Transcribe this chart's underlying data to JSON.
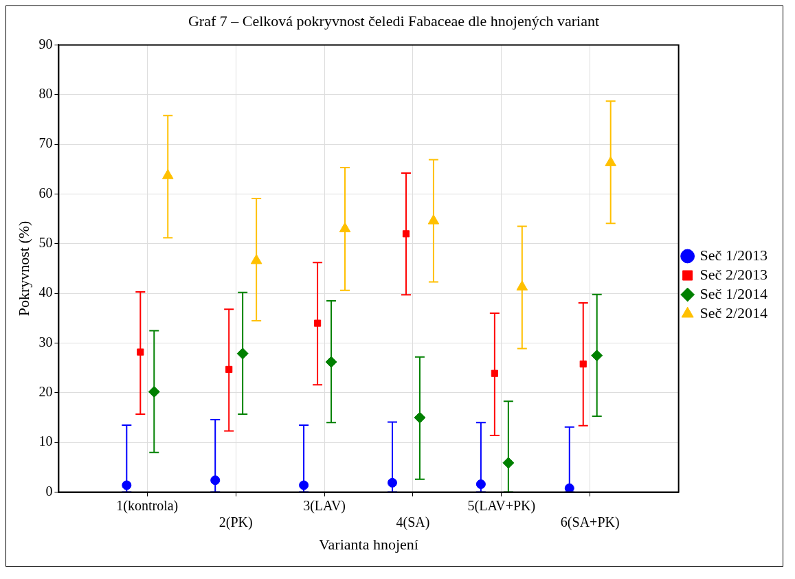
{
  "chart_data": {
    "type": "scatter",
    "title": "Graf 7 – Celková pokryvnost čeledi Fabaceae dle hnojených variant",
    "xlabel": "Varianta hnojení",
    "ylabel": "Pokryvnost (%)",
    "categories": [
      "1(kontrola)",
      "2(PK)",
      "3(LAV)",
      "4(SA)",
      "5(LAV+PK)",
      "6(SA+PK)"
    ],
    "ylim": [
      0,
      90
    ],
    "yticks": [
      0,
      10,
      20,
      30,
      40,
      50,
      60,
      70,
      80,
      90
    ],
    "grid": true,
    "legend": "right",
    "series": [
      {
        "name": "Seč 1/2013",
        "color": "#0000ff",
        "marker": "circle",
        "values": [
          1.4,
          2.4,
          1.4,
          1.9,
          1.6,
          0.8
        ],
        "errors": [
          [
            0,
            13.5
          ],
          [
            0,
            14.6
          ],
          [
            0,
            13.5
          ],
          [
            0,
            14.1
          ],
          [
            0,
            14.0
          ],
          [
            0,
            13.1
          ]
        ]
      },
      {
        "name": "Seč 2/2013",
        "color": "#ff0000",
        "marker": "square",
        "values": [
          28.2,
          24.7,
          34.0,
          52.0,
          23.9,
          25.8
        ],
        "errors": [
          [
            15.7,
            40.3
          ],
          [
            12.3,
            36.8
          ],
          [
            21.6,
            46.2
          ],
          [
            39.7,
            64.2
          ],
          [
            11.4,
            36.0
          ],
          [
            13.4,
            38.1
          ]
        ]
      },
      {
        "name": "Seč 1/2014",
        "color": "#008000",
        "marker": "diamond",
        "values": [
          20.2,
          27.9,
          26.2,
          15.0,
          5.9,
          27.5
        ],
        "errors": [
          [
            8.0,
            32.5
          ],
          [
            15.7,
            40.2
          ],
          [
            14.0,
            38.5
          ],
          [
            2.6,
            27.2
          ],
          [
            0,
            18.3
          ],
          [
            15.3,
            39.8
          ]
        ]
      },
      {
        "name": "Seč 2/2014",
        "color": "#ffc000",
        "marker": "triangle",
        "values": [
          63.7,
          46.6,
          53.0,
          54.6,
          41.3,
          66.3
        ],
        "errors": [
          [
            51.2,
            75.8
          ],
          [
            34.5,
            59.1
          ],
          [
            40.6,
            65.3
          ],
          [
            42.3,
            66.9
          ],
          [
            28.9,
            53.5
          ],
          [
            54.1,
            78.7
          ]
        ]
      }
    ]
  }
}
